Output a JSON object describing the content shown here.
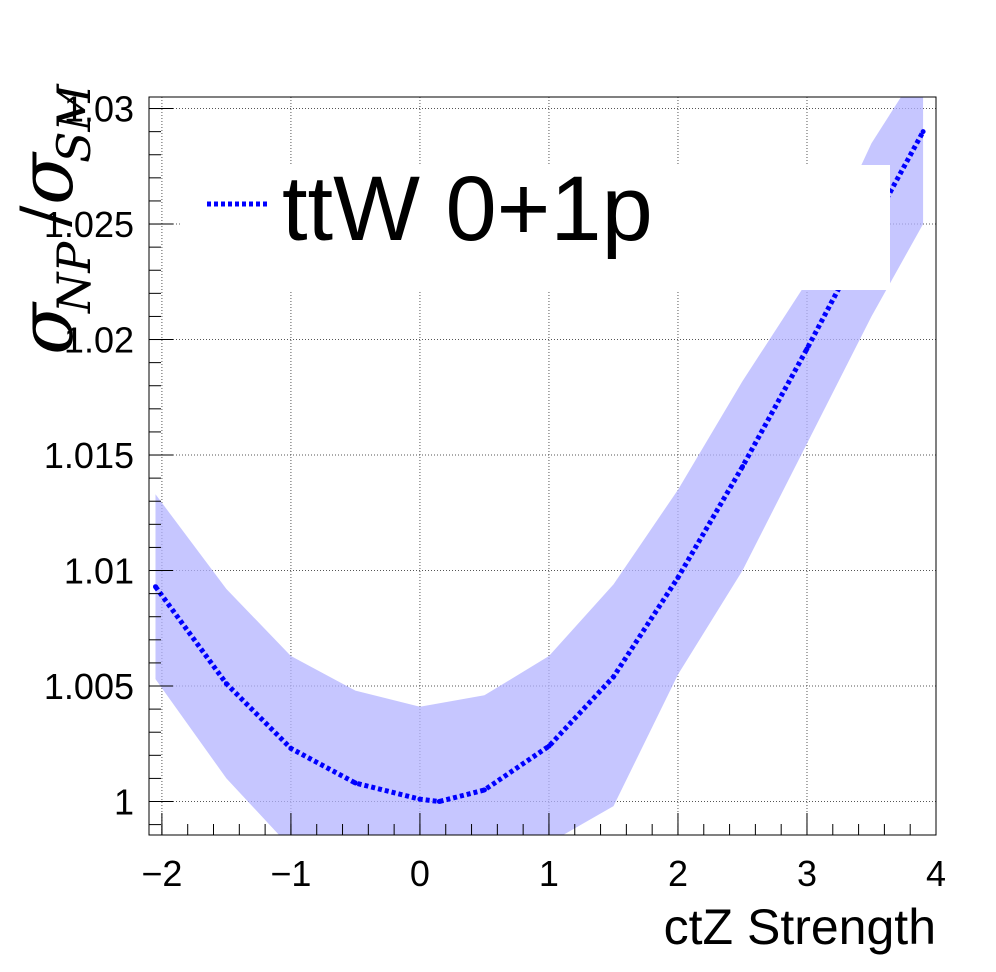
{
  "chart_data": {
    "type": "line",
    "xlabel": "ctZ Strength",
    "ylabel": {
      "sigma": "σ",
      "np": "NP",
      "slash": "/",
      "sm": "SM"
    },
    "xlim": [
      -2.1,
      4.0
    ],
    "ylim": [
      0.99855,
      1.0305
    ],
    "x_ticks": [
      {
        "value": -2,
        "label": "−2"
      },
      {
        "value": -1,
        "label": "−1"
      },
      {
        "value": 0,
        "label": "0"
      },
      {
        "value": 1,
        "label": "1"
      },
      {
        "value": 2,
        "label": "2"
      },
      {
        "value": 3,
        "label": "3"
      },
      {
        "value": 4,
        "label": "4"
      }
    ],
    "y_ticks": [
      {
        "value": 1.0,
        "label": "1"
      },
      {
        "value": 1.005,
        "label": "1.005"
      },
      {
        "value": 1.01,
        "label": "1.01"
      },
      {
        "value": 1.015,
        "label": "1.015"
      },
      {
        "value": 1.02,
        "label": "1.02"
      },
      {
        "value": 1.025,
        "label": "1.025"
      },
      {
        "value": 1.03,
        "label": "1.03"
      }
    ],
    "grid": true,
    "legend": {
      "position": "top-left",
      "entries": [
        "ttW 0+1p"
      ]
    },
    "series": [
      {
        "name": "ttW 0+1p",
        "color": "#0000ff",
        "style": "dotted",
        "x": [
          -2.05,
          -1.5,
          -1.0,
          -0.5,
          0.0,
          0.15,
          0.5,
          1.0,
          1.5,
          2.0,
          2.5,
          3.0,
          3.5,
          3.9
        ],
        "y": [
          1.0093,
          1.0051,
          1.0023,
          1.0008,
          1.0001,
          1.0,
          1.0005,
          1.0024,
          1.0054,
          1.0097,
          1.0145,
          1.0196,
          1.0249,
          1.029
        ]
      }
    ],
    "band": {
      "color": "#b3b3ff",
      "x": [
        -2.05,
        -1.5,
        -1.0,
        -0.5,
        0.0,
        0.5,
        1.0,
        1.5,
        2.0,
        2.5,
        3.0,
        3.5,
        3.9
      ],
      "upper": [
        1.0133,
        1.0092,
        1.0063,
        1.0048,
        1.0041,
        1.0046,
        1.0063,
        1.0094,
        1.0135,
        1.0182,
        1.0225,
        1.0285,
        1.032
      ],
      "lower": [
        1.0053,
        1.001,
        0.998,
        0.9965,
        0.996,
        0.9965,
        0.9982,
        0.9998,
        1.0055,
        1.01,
        1.0155,
        1.021,
        1.025
      ]
    }
  }
}
